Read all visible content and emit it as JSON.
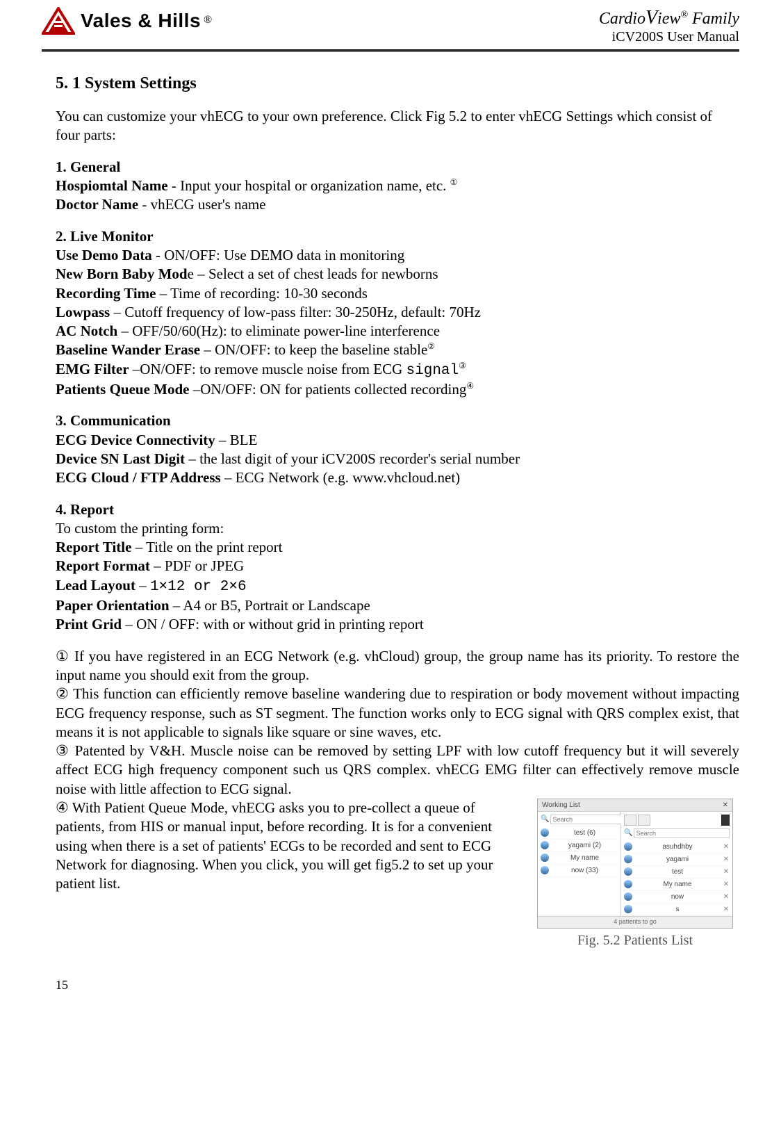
{
  "header": {
    "brand": "Vales & Hills",
    "brand_r": "®",
    "family_cardio": "Cardio",
    "family_v": "V",
    "family_iew": "iew",
    "family_r": "®",
    "family_suffix": " Family",
    "subtitle": "iCV200S User Manual"
  },
  "section_title": "5. 1 System Settings",
  "intro": "You can customize your vhECG to your own preference. Click Fig 5.2 to enter vhECG Settings which consist of four parts:",
  "sec1": {
    "head": "1. General",
    "hospital_label": "Hospiomtal Name",
    "hospital_text": " - Input your hospital or organization name, etc.",
    "hospital_ref": "①",
    "doctor_label": "Doctor Name",
    "doctor_text": " - vhECG user's name"
  },
  "sec2": {
    "head": "2. Live Monitor",
    "demo_label": "Use Demo Data",
    "demo_text": " - ON/OFF: Use DEMO data in monitoring",
    "newborn_label": "New Born Baby Mod",
    "newborn_e": "e",
    "newborn_text": " – Select a set of chest leads for newborns",
    "rectime_label": "Recording Time",
    "rectime_text": " – Time of recording: 10-30 seconds",
    "lowpass_label": "Lowpass",
    "lowpass_text": " – Cutoff frequency of low-pass filter: 30-250Hz, default: 70Hz",
    "acnotch_label": "AC Notch",
    "acnotch_text": " – OFF/50/60(Hz): to eliminate power-line interference",
    "baseline_label": "Baseline Wander Erase",
    "baseline_text": " – ON/OFF: to keep the baseline stable",
    "baseline_ref": "②",
    "emg_label": "EMG Filter",
    "emg_text": " –ON/OFF: to remove muscle noise from ECG ",
    "emg_mono": "signal",
    "emg_ref": "③",
    "queue_label": "Patients Queue Mode",
    "queue_text": " –ON/OFF: ON for patients collected recording",
    "queue_ref": "④"
  },
  "sec3": {
    "head": "3. Communication",
    "conn_label": "ECG Device Connectivity",
    "conn_text": " – BLE",
    "sn_label": "Device SN Last Digit",
    "sn_text": " – the last digit of your iCV200S recorder's serial number",
    "cloud_label": "ECG Cloud / FTP Address",
    "cloud_text": " – ECG Network (e.g. www.vhcloud.net)"
  },
  "sec4": {
    "head": "4. Report",
    "intro": "To custom the printing form:",
    "title_label": "Report Title",
    "title_text": " – Title on the print report",
    "format_label": "Report Format",
    "format_text": " – PDF or JPEG",
    "lead_label": "Lead Layout",
    "lead_dash": " – ",
    "lead_mono": "1×12 or 2×6",
    "orient_label": "Paper Orientation",
    "orient_text": " – A4 or B5, Portrait or Landscape",
    "grid_label": "Print Grid",
    "grid_text": " – ON / OFF: with or without grid in printing report"
  },
  "notes": {
    "n1": "① If you have registered in an ECG Network (e.g. vhCloud) group, the group name has its priority. To restore the input name you should exit from the group.",
    "n2": "② This function can efficiently remove baseline wandering due to respiration or body movement without impacting ECG frequency response, such as ST segment. The function works only to ECG signal with QRS complex exist, that means it is not applicable to signals like square or sine waves, etc.",
    "n3": "③ Patented by V&H. Muscle noise can be removed by setting LPF with low cutoff frequency but it will severely affect ECG high frequency component such us QRS complex. vhECG EMG filter can effectively remove muscle noise with little affection to ECG signal.",
    "n4": "④ With Patient Queue Mode, vhECG asks you to pre-collect a queue of patients, from HIS or manual input, before recording. It is for a convenient using when there is a set of patients' ECGs to be recorded and sent to ECG Network for diagnosing. When you click, you will  get fig5.2 to set up your patient list."
  },
  "figure": {
    "panel_title": "Working List",
    "search_placeholder": "Search",
    "left_rows": [
      "test (6)",
      "yagami (2)",
      "My name",
      "now (33)"
    ],
    "right_rows": [
      "asuhdhby",
      "yagami",
      "test",
      "My name",
      "now",
      "s"
    ],
    "footer": "4 patients to go",
    "caption": "Fig. 5.2 Patients List"
  },
  "page_number": "15"
}
